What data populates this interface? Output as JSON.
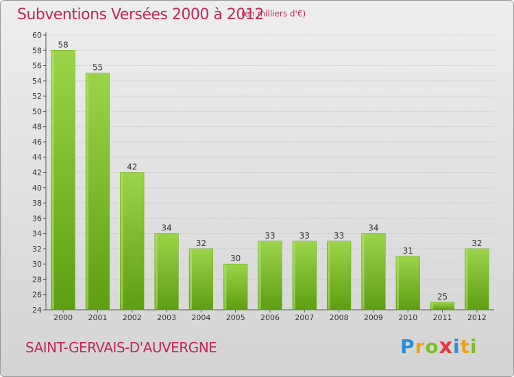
{
  "header": {
    "title": "Subventions Versées 2000 à 2012",
    "subtitle": "(en milliers d'€)"
  },
  "footer": {
    "commune": "SAINT-GERVAIS-D'AUVERGNE",
    "logo_letters": [
      "P",
      "r",
      "o",
      "x",
      "i",
      "t",
      "i"
    ],
    "logo_colors": [
      "#2a8fd6",
      "#f2a01b",
      "#7bbf2a",
      "#e8333b",
      "#2a8fd6",
      "#f2a01b",
      "#7bbf2a"
    ]
  },
  "colors": {
    "bar_light": "#9bd44a",
    "bar_dark": "#5e9e12",
    "title": "#c0265c",
    "grid": "#c8c8c8"
  },
  "chart_data": {
    "type": "bar",
    "categories": [
      "2000",
      "2001",
      "2002",
      "2003",
      "2004",
      "2005",
      "2006",
      "2007",
      "2008",
      "2009",
      "2010",
      "2011",
      "2012"
    ],
    "values": [
      58,
      55,
      42,
      34,
      32,
      30,
      33,
      33,
      33,
      34,
      31,
      25,
      32
    ],
    "ylim": [
      24,
      60
    ],
    "yticks": [
      24,
      26,
      28,
      30,
      32,
      34,
      36,
      38,
      40,
      42,
      44,
      46,
      48,
      50,
      52,
      54,
      56,
      58,
      60
    ],
    "grid": "horizontal-dashed",
    "legend": "none"
  }
}
